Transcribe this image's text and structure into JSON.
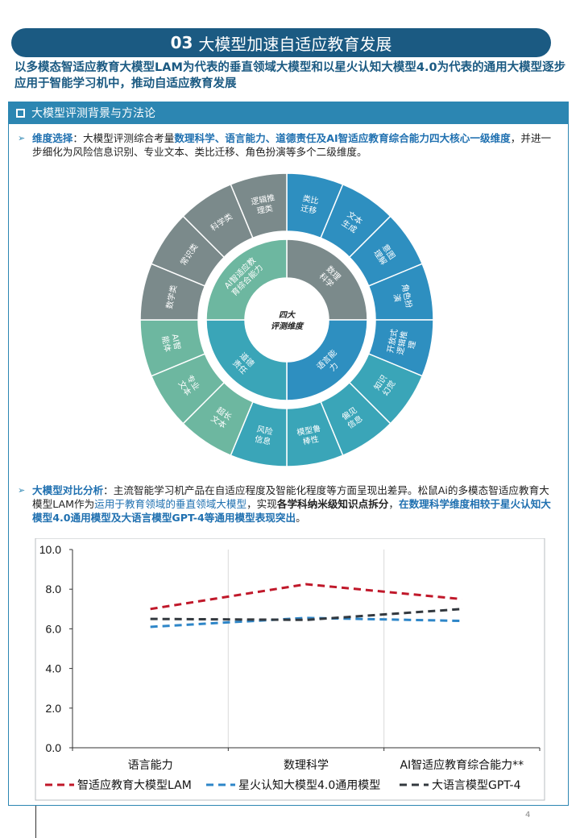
{
  "header": {
    "title_num": "03",
    "title_text": "大模型加速自适应教育发展",
    "subtitle": "以多模态智适应教育大模型LAM为代表的垂直领域大模型和以星火认知大模型4.0为代表的通用大模型逐步应用于智能学习机中，推动自适应教育发展"
  },
  "section": {
    "title": "大模型评测背景与方法论"
  },
  "bullet1": {
    "parts": [
      {
        "t": "维度选择",
        "s": "bb"
      },
      {
        "t": "：大模型评测综合考量",
        "s": ""
      },
      {
        "t": "数理科学、语言能力、道德责任及AI智适应教育综合能力四大核心一级维度",
        "s": "bb"
      },
      {
        "t": "，并进一步细化为风险信息识别、专业文本、类比迁移、角色扮演等多个二级维度。",
        "s": ""
      }
    ]
  },
  "wheel": {
    "center": [
      "四大",
      "评测维度"
    ],
    "inner": [
      {
        "label": "数理\n科学",
        "color": "#7b8a8b"
      },
      {
        "label": "语言能\n力",
        "color": "#2e8fc0"
      },
      {
        "label": "道德\n责任",
        "color": "#3aa5b8"
      },
      {
        "label": "AI智适应教\n育综合能力",
        "color": "#6db7a0"
      }
    ],
    "outer": [
      {
        "label": "类比\n迁移",
        "color": "#2e8fc0"
      },
      {
        "label": "文本\n生成",
        "color": "#2e8fc0"
      },
      {
        "label": "意图\n理解",
        "color": "#2e8fc0"
      },
      {
        "label": "角色扮\n演",
        "color": "#2e8fc0"
      },
      {
        "label": "开放式\n逻辑推\n理",
        "color": "#2e8fc0"
      },
      {
        "label": "知识\n幻觉",
        "color": "#3aa5b8"
      },
      {
        "label": "偏见\n信息",
        "color": "#3aa5b8"
      },
      {
        "label": "模型鲁\n棒性",
        "color": "#3aa5b8"
      },
      {
        "label": "风险\n信息",
        "color": "#3aa5b8"
      },
      {
        "label": "超长\n文本",
        "color": "#6db7a0"
      },
      {
        "label": "专业\n文本",
        "color": "#6db7a0"
      },
      {
        "label": "AI智\n能体",
        "color": "#6db7a0"
      },
      {
        "label": "数学类",
        "color": "#7b8a8b"
      },
      {
        "label": "常识类",
        "color": "#7b8a8b"
      },
      {
        "label": "科学类",
        "color": "#7b8a8b"
      },
      {
        "label": "逻辑推\n理类",
        "color": "#7b8a8b"
      }
    ]
  },
  "bullet2": {
    "parts": [
      {
        "t": "大模型对比分析",
        "s": "bb"
      },
      {
        "t": "：主流智能学习机产品在自适应程度及智能化程度等方面呈现出差异。松鼠Ai的多模态智适应教育大模型LAM作为",
        "s": ""
      },
      {
        "t": "运用于教育领域的垂直领域大模型",
        "s": "blue"
      },
      {
        "t": "，实现",
        "s": ""
      },
      {
        "t": "各学科纳米级知识点拆分",
        "s": "bold"
      },
      {
        "t": "，",
        "s": ""
      },
      {
        "t": "在数理科学维度相较于星火认知大模型4.0通用模型及大语言模型GPT-4等通用模型表现突出",
        "s": "bb"
      },
      {
        "t": "。",
        "s": ""
      }
    ]
  },
  "chart_data": {
    "type": "line",
    "categories": [
      "语言能力",
      "数理科学",
      "AI智适应教育综合能力**"
    ],
    "ylim": [
      0,
      10
    ],
    "yticks": [
      "0.0",
      "2.0",
      "4.0",
      "6.0",
      "8.0",
      "10.0"
    ],
    "series": [
      {
        "name": "智适应教育大模型LAM",
        "values": [
          7.0,
          8.25,
          7.5
        ],
        "color": "#c0182a"
      },
      {
        "name": "星火认知大模型4.0通用模型",
        "values": [
          6.1,
          6.55,
          6.4
        ],
        "color": "#2e86c8"
      },
      {
        "name": "大语言模型GPT-4",
        "values": [
          6.5,
          6.45,
          7.0
        ],
        "color": "#33393f"
      }
    ]
  },
  "footer": {
    "page": "4"
  }
}
